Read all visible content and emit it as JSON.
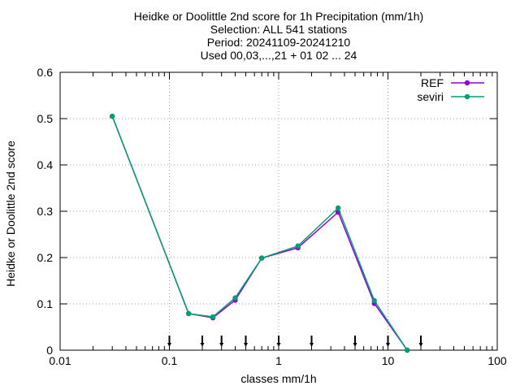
{
  "chart_data": {
    "type": "line",
    "title_lines": [
      "Heidke or Doolittle 2nd score  for 1h Precipitation (mm/1h)",
      "Selection: ALL    541 stations",
      "Period: 20241109-20241210",
      "Used 00,03,...,21 + 01 02 ... 24"
    ],
    "xlabel": "classes mm/1h",
    "ylabel": "Heidke or Doolittle 2nd score",
    "xscale": "log",
    "xlim": [
      0.01,
      100
    ],
    "ylim": [
      0,
      0.6
    ],
    "x_ticks": [
      0.01,
      0.1,
      1,
      10,
      100
    ],
    "x_tick_labels": [
      "0.01",
      "0.1",
      "1",
      "10",
      "100"
    ],
    "y_ticks": [
      0,
      0.1,
      0.2,
      0.3,
      0.4,
      0.5,
      0.6
    ],
    "y_tick_labels": [
      "0",
      "0.1",
      "0.2",
      "0.3",
      "0.4",
      "0.5",
      "0.6"
    ],
    "grid": true,
    "legend_position": "top-right",
    "class_limits": [
      0.1,
      0.2,
      0.3,
      0.5,
      1,
      2,
      5,
      10,
      20
    ],
    "x": [
      0.03,
      0.15,
      0.25,
      0.4,
      0.7,
      1.5,
      3.5,
      7.5,
      15
    ],
    "series": [
      {
        "name": "REF",
        "color": "#9400d3",
        "values": [
          0.505,
          0.079,
          0.07,
          0.108,
          0.199,
          0.221,
          0.298,
          0.101,
          0.0
        ]
      },
      {
        "name": "seviri",
        "color": "#009e73",
        "values": [
          0.505,
          0.079,
          0.072,
          0.113,
          0.199,
          0.225,
          0.307,
          0.107,
          0.0
        ]
      }
    ]
  }
}
